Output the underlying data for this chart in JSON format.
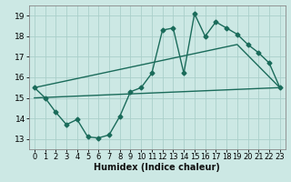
{
  "xlabel": "Humidex (Indice chaleur)",
  "bg_color": "#cce8e4",
  "grid_color": "#aacfca",
  "line_color": "#1a6b5a",
  "xlim": [
    -0.5,
    23.5
  ],
  "ylim": [
    12.5,
    19.5
  ],
  "yticks": [
    13,
    14,
    15,
    16,
    17,
    18,
    19
  ],
  "xticks": [
    0,
    1,
    2,
    3,
    4,
    5,
    6,
    7,
    8,
    9,
    10,
    11,
    12,
    13,
    14,
    15,
    16,
    17,
    18,
    19,
    20,
    21,
    22,
    23
  ],
  "line1_x": [
    0,
    1,
    2,
    3,
    4,
    5,
    6,
    7,
    8,
    9,
    10,
    11,
    12,
    13,
    14,
    15,
    16,
    17,
    18,
    19,
    20,
    21,
    22,
    23
  ],
  "line1_y": [
    15.5,
    15.0,
    14.3,
    13.7,
    13.95,
    13.1,
    13.05,
    13.2,
    14.1,
    15.3,
    15.5,
    16.2,
    18.3,
    18.4,
    16.2,
    19.1,
    18.0,
    18.7,
    18.4,
    18.1,
    17.6,
    17.2,
    16.7,
    15.5
  ],
  "upper_line_x": [
    0,
    19,
    23
  ],
  "upper_line_y": [
    15.5,
    17.6,
    15.5
  ],
  "lower_line_x": [
    0,
    23
  ],
  "lower_line_y": [
    15.0,
    15.5
  ],
  "marker_size": 2.5,
  "linewidth": 1.0,
  "font_size": 6.5
}
